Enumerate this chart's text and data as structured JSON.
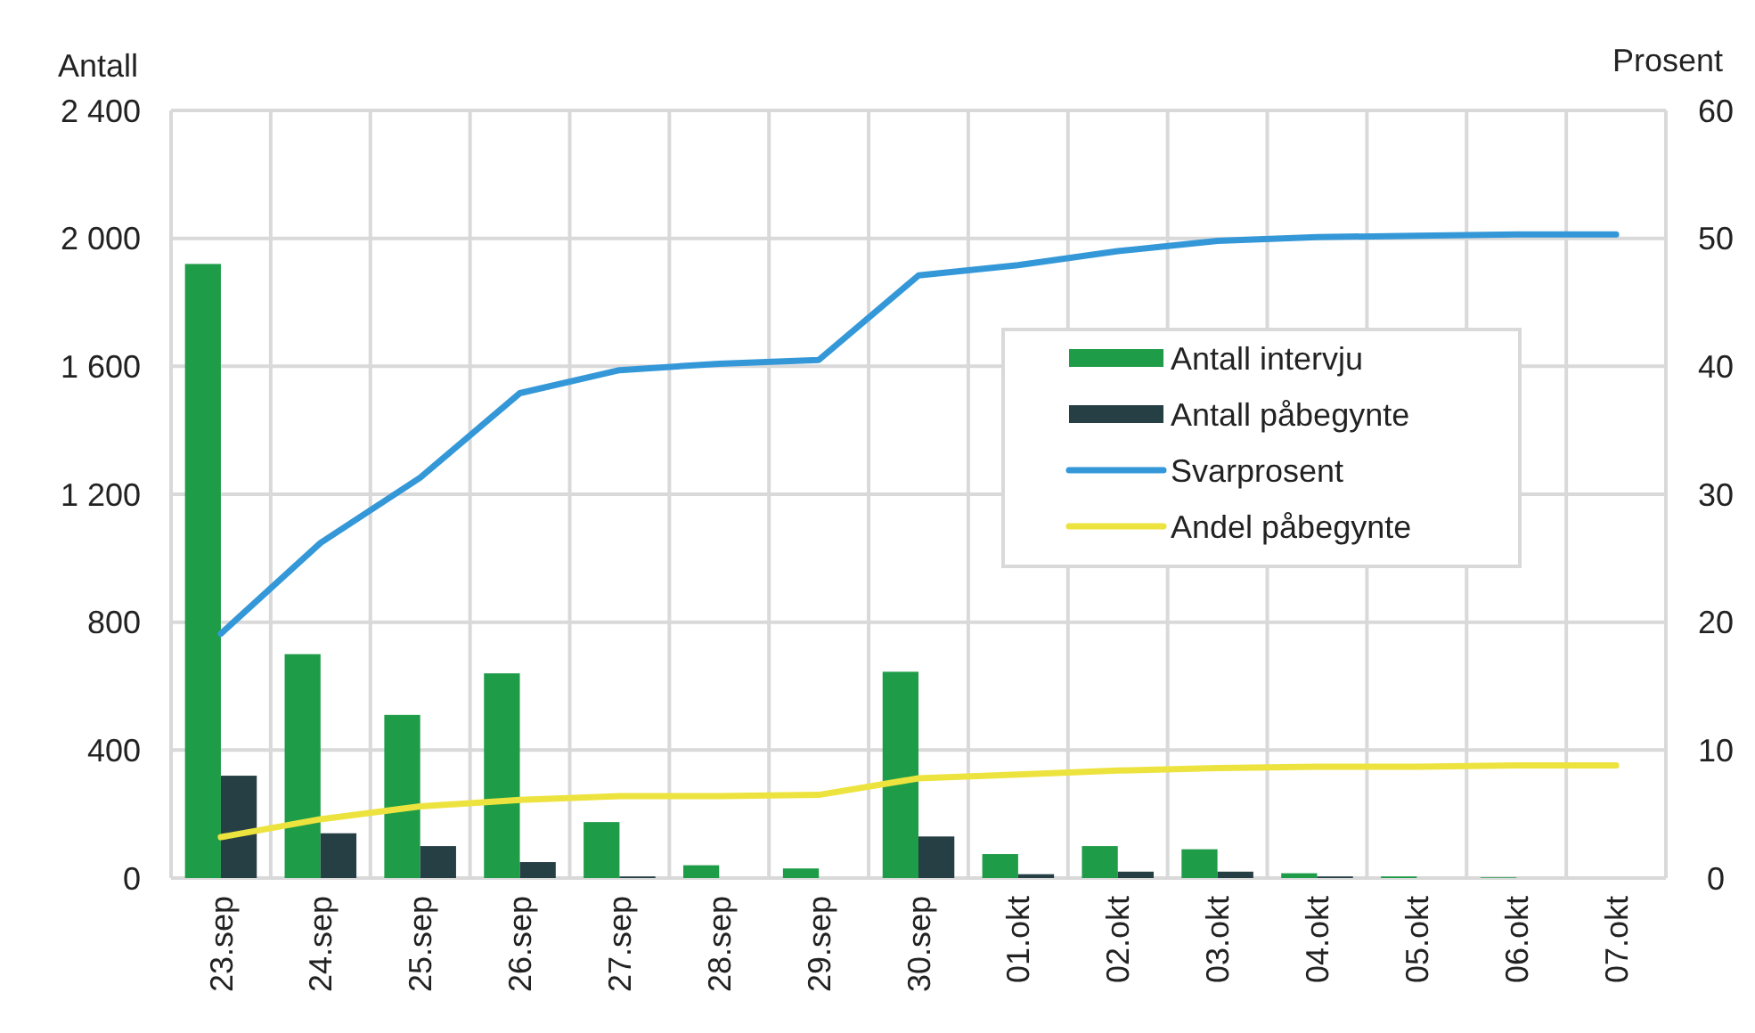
{
  "chart_data": {
    "type": "bar",
    "ylabel": "Antall",
    "y2label": "Prosent",
    "categories": [
      "23.sep",
      "24.sep",
      "25.sep",
      "26.sep",
      "27.sep",
      "28.sep",
      "29.sep",
      "30.sep",
      "01.okt",
      "02.okt",
      "03.okt",
      "04.okt",
      "05.okt",
      "06.okt",
      "07.okt"
    ],
    "series": [
      {
        "name": "Antall intervju",
        "color": "#1e9c48",
        "values": [
          1920,
          700,
          510,
          640,
          175,
          40,
          30,
          645,
          75,
          100,
          90,
          15,
          5,
          2,
          0
        ]
      },
      {
        "name": "Antall påbegynte",
        "color": "#263f45",
        "values": [
          320,
          140,
          100,
          50,
          5,
          0,
          0,
          130,
          12,
          20,
          20,
          5,
          0,
          0,
          0
        ]
      },
      {
        "name": "Svarprosent",
        "type": "line",
        "axis": "y2",
        "color": "#3498d8",
        "values": [
          19.1,
          26.2,
          31.3,
          37.9,
          39.7,
          40.2,
          40.5,
          47.1,
          47.9,
          49,
          49.8,
          50.1,
          50.2,
          50.3,
          50.3
        ]
      },
      {
        "name": "Andel påbegynte",
        "type": "line",
        "axis": "y2",
        "color": "#ede33e",
        "values": [
          3.2,
          4.6,
          5.6,
          6.1,
          6.4,
          6.4,
          6.5,
          7.8,
          8.1,
          8.4,
          8.6,
          8.7,
          8.7,
          8.8,
          8.8
        ]
      }
    ],
    "ylim": [
      0,
      2400
    ],
    "yticks": [
      0,
      400,
      800,
      {
        "value": 1200,
        "label": "1 200"
      },
      {
        "value": 1600,
        "label": "1 600"
      },
      {
        "value": 2000,
        "label": "2 000"
      },
      {
        "value": 2400,
        "label": "2 400"
      }
    ],
    "y2lim": [
      0,
      60
    ],
    "y2ticks": [
      0,
      10,
      20,
      30,
      40,
      50,
      60
    ],
    "grid": true,
    "legend": "right"
  }
}
